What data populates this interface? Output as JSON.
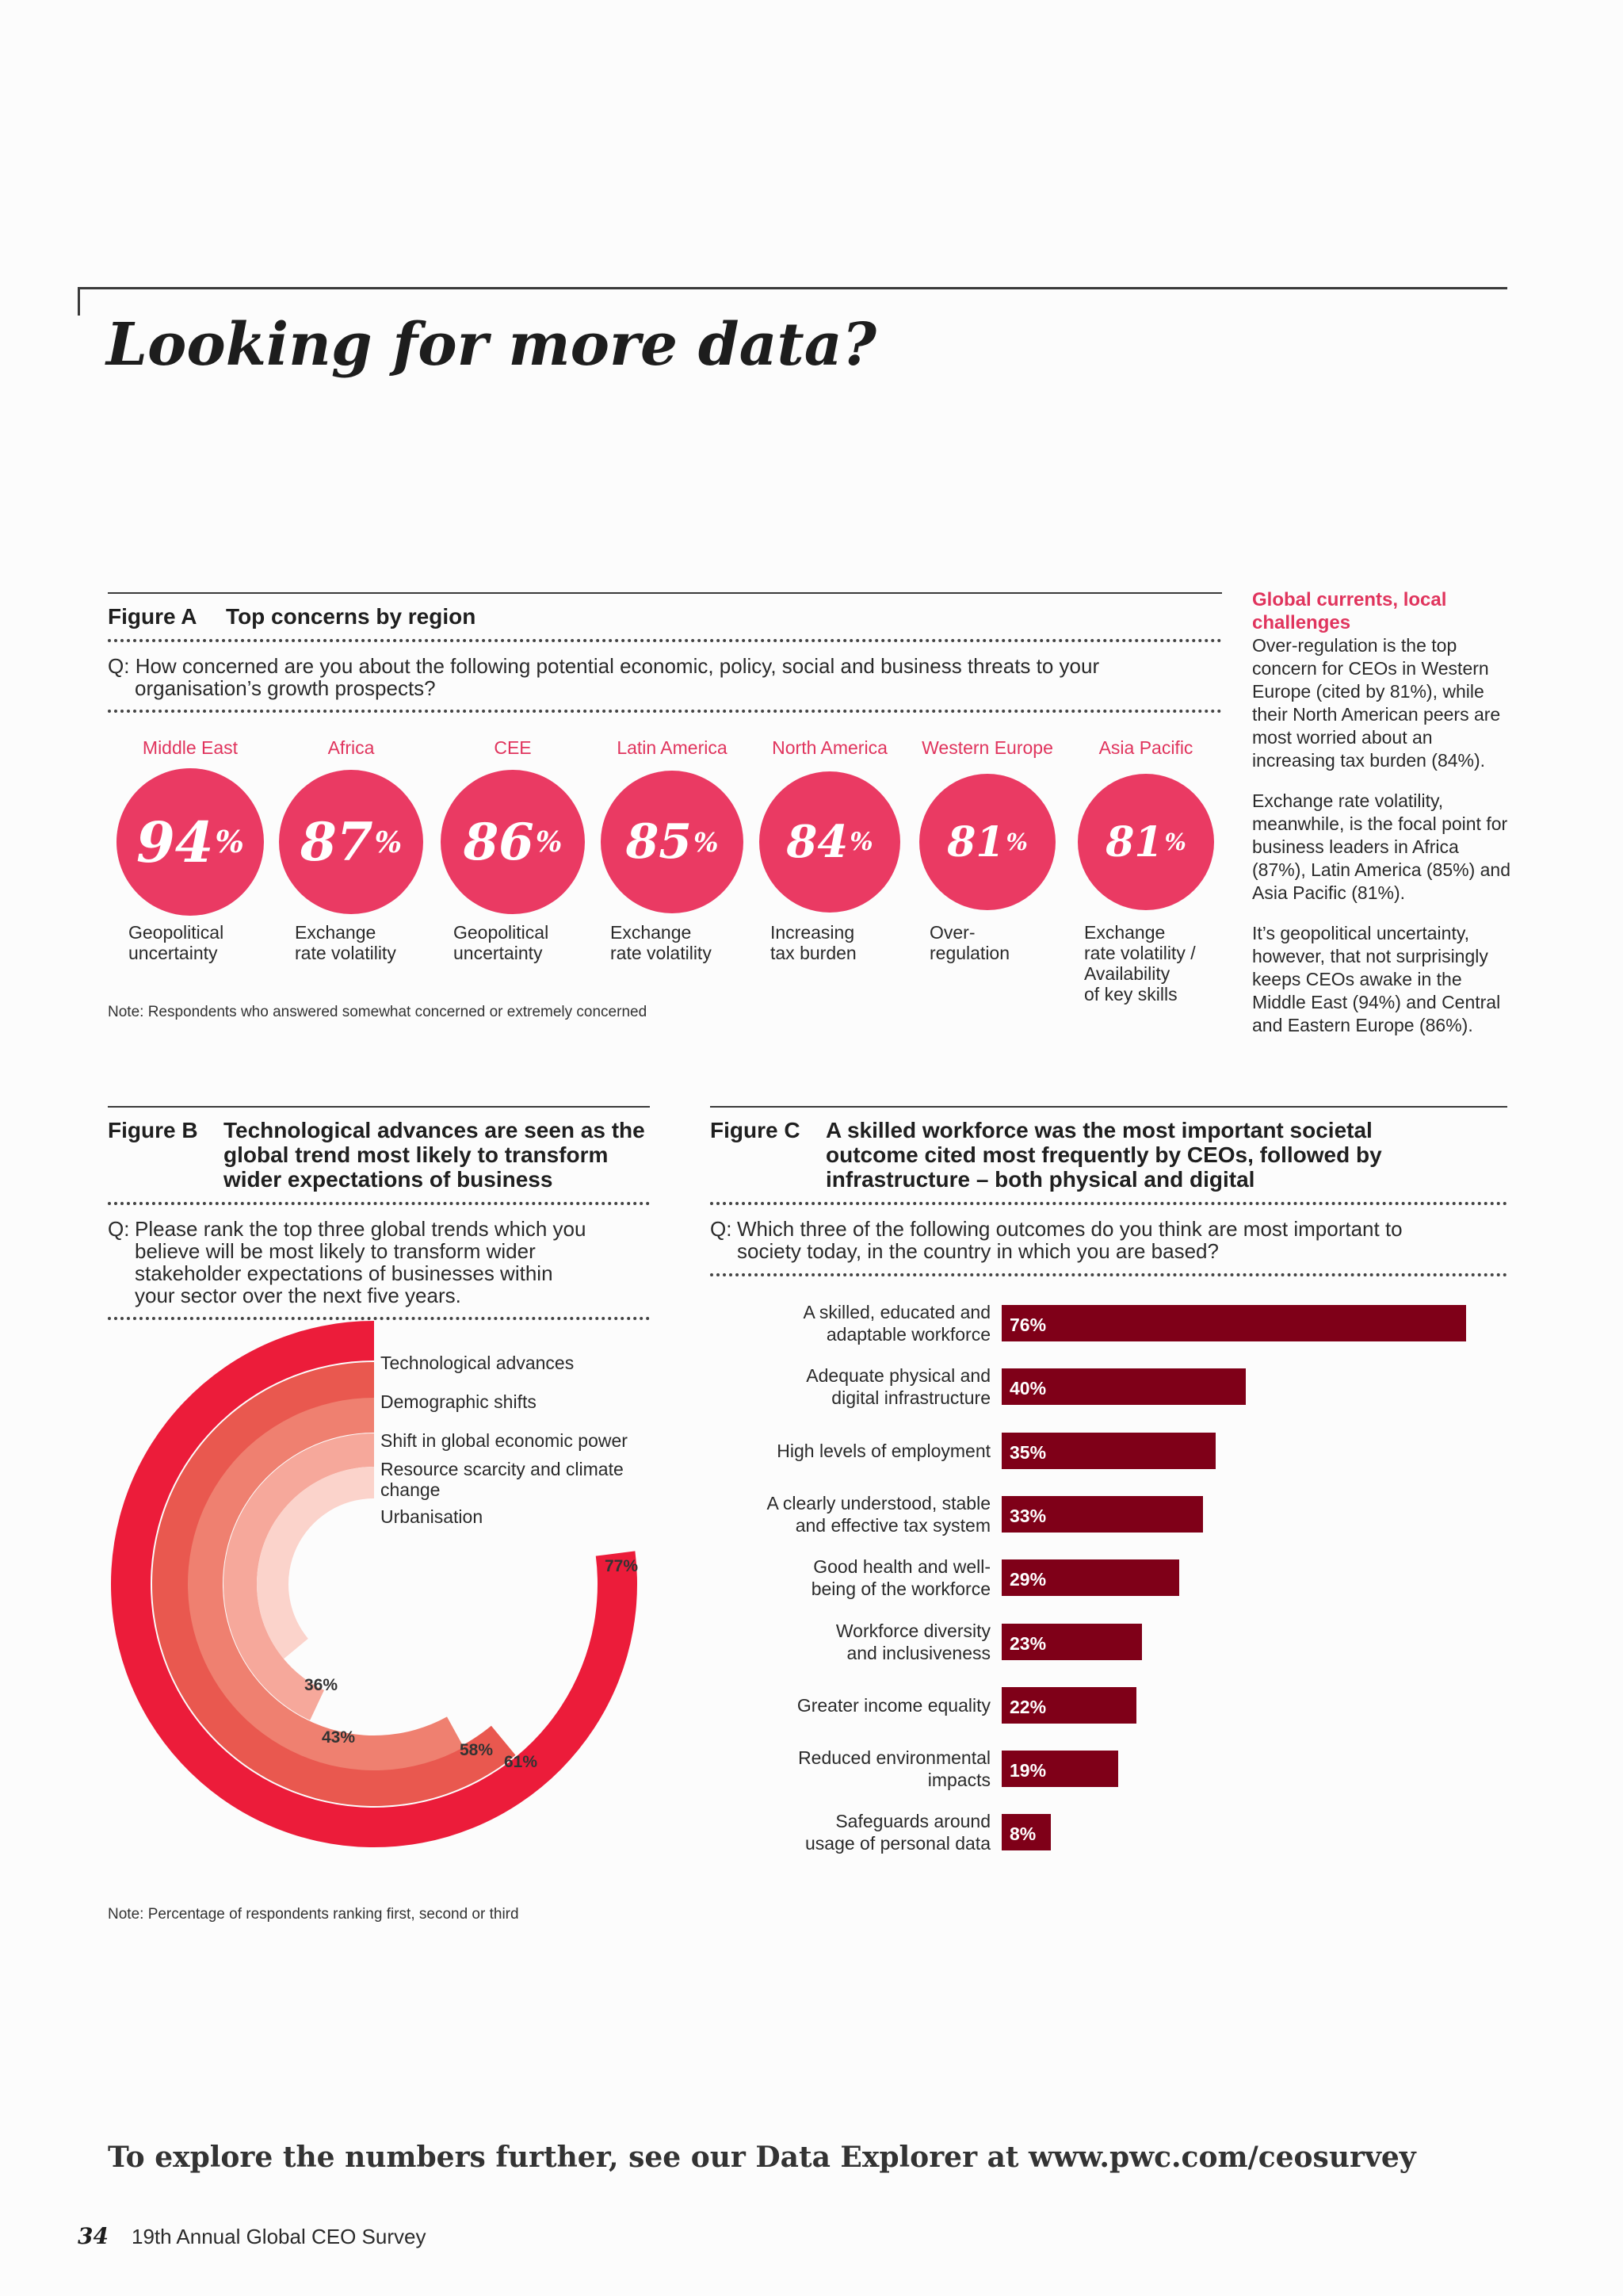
{
  "page_title": "Looking for more data?",
  "figure_a": {
    "label": "Figure A",
    "title": "Top concerns by region",
    "question_prefix": "Q:",
    "question_line1": "How concerned are you about the following potential economic, policy, social and business threats to your",
    "question_line2": "organisation’s growth prospects?",
    "note": "Note: Respondents who answered somewhat concerned or extremely concerned",
    "regions": [
      {
        "region": "Middle East",
        "value": "94",
        "unit": "%",
        "concern_lines": [
          "Geopolitical",
          "uncertainty"
        ]
      },
      {
        "region": "Africa",
        "value": "87",
        "unit": "%",
        "concern_lines": [
          "Exchange",
          "rate volatility"
        ]
      },
      {
        "region": "CEE",
        "value": "86",
        "unit": "%",
        "concern_lines": [
          "Geopolitical",
          "uncertainty"
        ]
      },
      {
        "region": "Latin America",
        "value": "85",
        "unit": "%",
        "concern_lines": [
          "Exchange",
          "rate volatility"
        ]
      },
      {
        "region": "North America",
        "value": "84",
        "unit": "%",
        "concern_lines": [
          "Increasing",
          "tax burden"
        ]
      },
      {
        "region": "Western Europe",
        "value": "81",
        "unit": "%",
        "concern_lines": [
          "Over-",
          "regulation"
        ]
      },
      {
        "region": "Asia Pacific",
        "value": "81",
        "unit": "%",
        "concern_lines": [
          "Exchange",
          "rate volatility /",
          "Availability",
          "of key skills"
        ]
      }
    ]
  },
  "sidebar": {
    "heading": "Global currents, local challenges",
    "paragraphs": [
      "Over-regulation is the top concern for CEOs in Western Europe (cited by 81%), while their North American peers are most worried about an increasing tax burden (84%).",
      "Exchange rate volatility, meanwhile, is the focal point for business leaders in Africa (87%), Latin America (85%) and Asia Pacific (81%).",
      "It’s geopolitical uncertainty, however, that not surprisingly keeps CEOs awake in the Middle East (94%) and Central and Eastern Europe (86%)."
    ]
  },
  "figure_b": {
    "label": "Figure B",
    "title": "Technological advances are seen as the global trend most likely to transform wider expectations of business",
    "question_prefix": "Q:",
    "question": "Please rank the top three global trends which you believe will be most likely to transform wider stakeholder expectations of businesses within your sector over the next five years.",
    "note": "Note: Percentage of respondents ranking first, second or third"
  },
  "figure_c": {
    "label": "Figure C",
    "title": "A skilled workforce was the most important societal outcome cited most frequently by CEOs, followed by infrastructure – both physical and digital",
    "question_prefix": "Q:",
    "question": "Which three of the following outcomes do you think are most important to society today, in the country in which you are based?"
  },
  "chart_data": [
    {
      "type": "radial-bar",
      "id": "figure_b",
      "title": "Technological advances are seen as the global trend most likely to transform wider expectations of business",
      "unit": "%",
      "series": [
        {
          "name": "Technological advances",
          "value": 77,
          "label": "77%",
          "color": "#ec1c3a"
        },
        {
          "name": "Demographic shifts",
          "value": 61,
          "label": "61%",
          "color": "#e9584f"
        },
        {
          "name": "Shift in global economic power",
          "value": 58,
          "label": "58%",
          "color": "#ef8070"
        },
        {
          "name": "Resource scarcity and climate change",
          "value": 43,
          "label": "43%",
          "color": "#f6a89b"
        },
        {
          "name": "Urbanisation",
          "value": 36,
          "label": "36%",
          "color": "#fbd3cb"
        }
      ]
    },
    {
      "type": "bar",
      "orientation": "horizontal",
      "id": "figure_c",
      "title": "A skilled workforce was the most important societal outcome cited most frequently by CEOs, followed by infrastructure – both physical and digital",
      "color": "#7f0018",
      "xlim": [
        0,
        80
      ],
      "categories": [
        [
          "A skilled, educated and",
          "adaptable workforce"
        ],
        [
          "Adequate physical and",
          "digital infrastructure"
        ],
        [
          "High levels of employment"
        ],
        [
          "A clearly understood, stable",
          "and effective tax system"
        ],
        [
          "Good health and well-",
          "being of the workforce"
        ],
        [
          "Workforce diversity",
          "and inclusiveness"
        ],
        [
          "Greater income equality"
        ],
        [
          "Reduced environmental",
          "impacts"
        ],
        [
          "Safeguards around",
          "usage of personal data"
        ]
      ],
      "values": [
        76,
        40,
        35,
        33,
        29,
        23,
        22,
        19,
        8
      ],
      "value_labels": [
        "76%",
        "40%",
        "35%",
        "33%",
        "29%",
        "23%",
        "22%",
        "19%",
        "8%"
      ]
    }
  ],
  "footer_link_text": "To explore the numbers further, see our Data Explorer at www.pwc.com/ceosurvey",
  "page_number": "34",
  "publication": "19th Annual Global CEO Survey"
}
